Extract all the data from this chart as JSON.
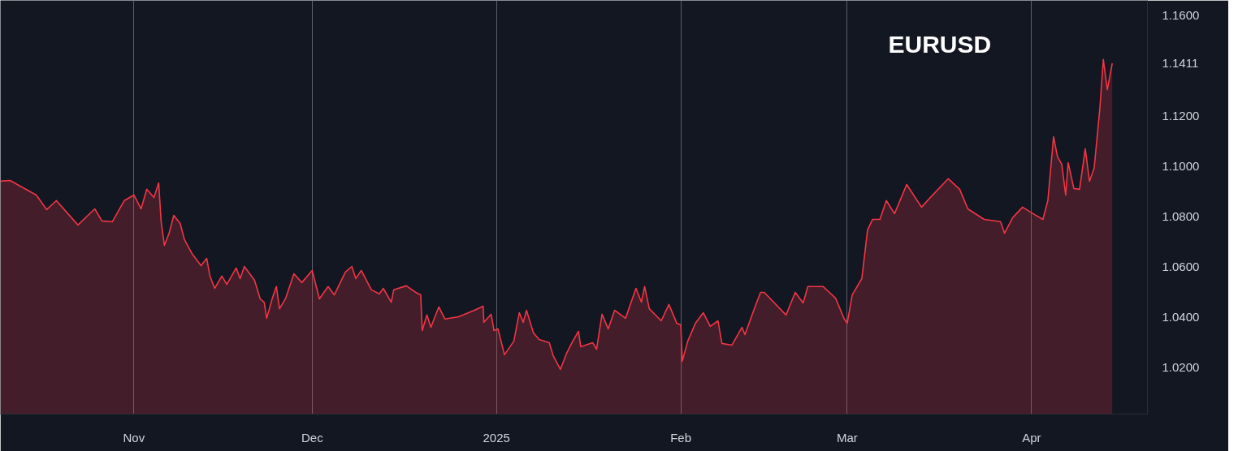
{
  "chart_data": {
    "type": "area",
    "title": "EURUSD",
    "x": [
      "2024-10-09T13:00",
      "2024-10-11T04:00",
      "2024-10-15T14:00",
      "2024-10-17T08:00",
      "2024-10-18T23:00",
      "2024-10-22T14:00",
      "2024-10-25T10:00",
      "2024-10-26T15:00",
      "2024-10-28T09:00",
      "2024-10-30T09:00",
      "2024-11-01T00:00",
      "2024-11-02T05:00",
      "2024-11-03T04:00",
      "2024-11-04T09:00",
      "2024-11-05T04:00",
      "2024-11-05T14:00",
      "2024-11-06T03:00",
      "2024-11-06T22:00",
      "2024-11-07T17:00",
      "2024-11-08T19:00",
      "2024-11-09T12:00",
      "2024-11-10T20:00",
      "2024-11-12T07:00",
      "2024-11-13T06:00",
      "2024-11-13T19:00",
      "2024-11-14T14:00",
      "2024-11-15T19:00",
      "2024-11-16T15:00",
      "2024-11-18T05:00",
      "2024-11-18T21:00",
      "2024-11-19T14:00",
      "2024-11-21T07:00",
      "2024-11-22T06:00",
      "2024-11-22T22:00",
      "2024-11-23T08:00",
      "2024-11-24T07:00",
      "2024-11-24T23:00",
      "2024-11-25T12:00",
      "2024-11-26T13:00",
      "2024-11-27T22:00",
      "2024-11-29T06:00",
      "2024-12-01T00:00",
      "2024-12-02T05:00",
      "2024-12-03T16:00",
      "2024-12-04T17:00",
      "2024-12-06T14:00",
      "2024-12-07T16:00",
      "2024-12-08T08:00",
      "2024-12-09T06:00",
      "2024-12-10T23:00",
      "2024-12-12T07:00",
      "2024-12-12T23:00",
      "2024-12-14T07:00",
      "2024-12-14T17:00",
      "2024-12-16T20:00",
      "2024-12-18T10:00",
      "2024-12-19T06:00",
      "2024-12-19T12:00",
      "2024-12-20T07:00",
      "2024-12-20T23:00",
      "2024-12-22T07:00",
      "2024-12-23T08:00",
      "2024-12-25T15:00",
      "2024-12-28T07:00",
      "2024-12-29T18:00",
      "2024-12-29T21:00",
      "2024-12-31T02:00",
      "2024-12-31T14:00",
      "2025-01-01T06:00",
      "2025-01-02T08:00",
      "2025-01-03T22:00",
      "2025-01-04T20:00",
      "2025-01-05T12:00",
      "2025-01-06T01:00",
      "2025-01-07T05:00",
      "2025-01-08T04:00",
      "2025-01-09T21:00",
      "2025-01-10T13:00",
      "2025-01-11T18:00",
      "2025-01-12T19:00",
      "2025-01-13T20:00",
      "2025-01-14T19:00",
      "2025-01-15T04:00",
      "2025-01-17T04:00",
      "2025-01-17T20:00",
      "2025-01-18T18:00",
      "2025-01-19T19:00",
      "2025-01-20T21:00",
      "2025-01-22T17:00",
      "2025-01-24T11:00",
      "2025-01-25T09:00",
      "2025-01-25T22:00",
      "2025-01-26T17:00",
      "2025-01-28T17:00",
      "2025-01-30T00:00",
      "2025-01-31T08:00",
      "2025-02-01T00:00",
      "2025-02-01T06:00",
      "2025-02-02T04:00",
      "2025-02-03T11:00",
      "2025-02-04T19:00",
      "2025-02-05T23:00",
      "2025-02-07T06:00",
      "2025-02-07T22:00",
      "2025-02-09T14:00",
      "2025-02-11T07:00",
      "2025-02-11T19:00",
      "2025-02-13T09:00",
      "2025-02-14T10:00",
      "2025-02-15T01:00",
      "2025-02-18T17:00",
      "2025-02-20T06:00",
      "2025-02-21T14:00",
      "2025-02-22T09:00",
      "2025-02-24T23:00",
      "2025-02-27T01:00",
      "2025-02-28T12:00",
      "2025-03-01T00:00",
      "2025-03-01T20:00",
      "2025-03-03T11:00",
      "2025-03-04T10:00",
      "2025-03-05T06:00",
      "2025-03-06T12:00",
      "2025-03-07T14:00",
      "2025-03-08T23:00",
      "2025-03-11T00:00",
      "2025-03-13T12:00",
      "2025-03-15T03:00",
      "2025-03-18T00:00",
      "2025-03-19T22:00",
      "2025-03-21T07:00",
      "2025-03-24T01:00",
      "2025-03-26T19:00",
      "2025-03-27T11:00",
      "2025-03-28T20:00",
      "2025-03-30T12:00",
      "2025-04-01T06:00",
      "2025-04-02T22:00",
      "2025-04-03T18:00",
      "2025-04-04T17:00",
      "2025-04-05T09:00",
      "2025-04-06T02:00",
      "2025-04-06T18:00",
      "2025-04-07T04:00",
      "2025-04-08T03:00",
      "2025-04-09T02:00",
      "2025-04-10T01:00",
      "2025-04-10T18:00",
      "2025-04-11T13:00",
      "2025-04-12T12:00",
      "2025-04-13T02:00",
      "2025-04-13T18:00",
      "2025-04-14T14:00"
    ],
    "series": [
      {
        "color": "#f23645",
        "values": [
          1.0942,
          1.0945,
          1.0887,
          1.0829,
          1.0865,
          1.0768,
          1.0832,
          1.0784,
          1.0781,
          1.0865,
          1.0887,
          1.0832,
          1.091,
          1.0877,
          1.0935,
          1.0781,
          1.0687,
          1.0735,
          1.0806,
          1.0774,
          1.071,
          1.0652,
          1.0606,
          1.0635,
          1.0565,
          1.0516,
          1.0565,
          1.0532,
          1.0597,
          1.0555,
          1.0603,
          1.0548,
          1.0474,
          1.0461,
          1.0397,
          1.0477,
          1.0523,
          1.0435,
          1.0477,
          1.0574,
          1.0539,
          1.0587,
          1.0474,
          1.0523,
          1.049,
          1.0581,
          1.0603,
          1.0555,
          1.0587,
          1.051,
          1.0494,
          1.0516,
          1.0461,
          1.051,
          1.0526,
          1.05,
          1.049,
          1.0348,
          1.041,
          1.0361,
          1.0442,
          1.0394,
          1.0403,
          1.0429,
          1.0445,
          1.0381,
          1.0413,
          1.0348,
          1.0355,
          1.0252,
          1.0306,
          1.0419,
          1.0381,
          1.0429,
          1.0339,
          1.0313,
          1.03,
          1.0248,
          1.0194,
          1.0258,
          1.0306,
          1.0345,
          1.0284,
          1.03,
          1.0274,
          1.0413,
          1.0355,
          1.0429,
          1.0397,
          1.0516,
          1.0461,
          1.0523,
          1.0435,
          1.0387,
          1.0452,
          1.0377,
          1.0371,
          1.0226,
          1.0306,
          1.0377,
          1.0419,
          1.0365,
          1.0387,
          1.0297,
          1.029,
          1.0361,
          1.0332,
          1.0435,
          1.05,
          1.05,
          1.041,
          1.05,
          1.0458,
          1.0523,
          1.0523,
          1.0477,
          1.0394,
          1.0377,
          1.049,
          1.0555,
          1.0748,
          1.079,
          1.079,
          1.0865,
          1.0813,
          1.0929,
          1.0839,
          1.0881,
          1.0952,
          1.091,
          1.0832,
          1.079,
          1.0781,
          1.0735,
          1.0797,
          1.0839,
          1.0813,
          1.079,
          1.0865,
          1.1119,
          1.1039,
          1.101,
          1.0887,
          1.1016,
          1.0913,
          1.091,
          1.1071,
          1.0942,
          1.0994,
          1.1232,
          1.1426,
          1.1306,
          1.1411
        ]
      }
    ],
    "xlim": [
      "2024-10-09T13:00",
      "2025-04-20T12:00"
    ],
    "xticks": [
      {
        "value": "2024-11-01",
        "label": "Nov"
      },
      {
        "value": "2024-12-01",
        "label": "Dec"
      },
      {
        "value": "2025-01-01",
        "label": "2025"
      },
      {
        "value": "2025-02-01",
        "label": "Feb"
      },
      {
        "value": "2025-03-01",
        "label": "Mar"
      },
      {
        "value": "2025-04-01",
        "label": "Apr"
      }
    ],
    "ylim": [
      1.0016,
      1.1661
    ],
    "yticks": [
      {
        "value": 1.02,
        "label": "1.0200"
      },
      {
        "value": 1.04,
        "label": "1.0400"
      },
      {
        "value": 1.06,
        "label": "1.0600"
      },
      {
        "value": 1.08,
        "label": "1.0800"
      },
      {
        "value": 1.1,
        "label": "1.1000"
      },
      {
        "value": 1.12,
        "label": "1.1200"
      },
      1.1411,
      {
        "value": 1.16,
        "label": "1.1600"
      }
    ],
    "grid": "x"
  }
}
